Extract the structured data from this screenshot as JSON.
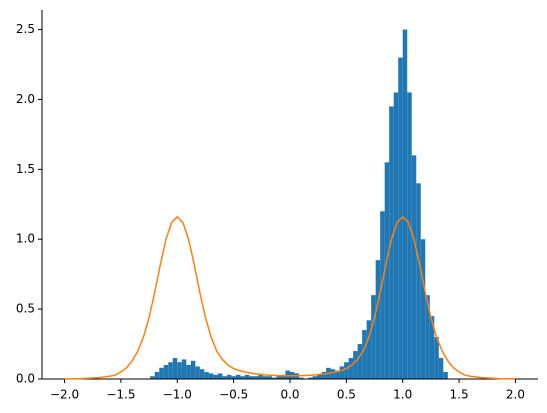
{
  "chart_data": [
    {
      "type": "histogram",
      "color": "#1f77b4",
      "bins": [
        -1.24,
        -1.2,
        -1.16,
        -1.12,
        -1.08,
        -1.04,
        -1.0,
        -0.96,
        -0.92,
        -0.88,
        -0.84,
        -0.8,
        -0.76,
        -0.72,
        -0.68,
        -0.64,
        -0.6,
        -0.56,
        -0.52,
        -0.48,
        -0.44,
        -0.4,
        -0.36,
        -0.32,
        -0.28,
        -0.24,
        -0.2,
        -0.16,
        -0.12,
        -0.08,
        -0.04,
        0.0,
        0.04,
        0.08,
        0.12,
        0.16,
        0.2,
        0.24,
        0.28,
        0.32,
        0.36,
        0.4,
        0.44,
        0.48,
        0.52,
        0.56,
        0.6,
        0.64,
        0.68,
        0.72,
        0.76,
        0.8,
        0.84,
        0.88,
        0.92,
        0.96,
        1.0,
        1.04,
        1.08,
        1.12,
        1.16,
        1.2,
        1.24,
        1.28,
        1.32,
        1.36,
        1.4
      ],
      "values": [
        0.02,
        0.05,
        0.08,
        0.1,
        0.12,
        0.15,
        0.12,
        0.14,
        0.1,
        0.13,
        0.09,
        0.07,
        0.05,
        0.04,
        0.03,
        0.04,
        0.02,
        0.03,
        0.02,
        0.03,
        0.02,
        0.03,
        0.02,
        0.02,
        0.03,
        0.02,
        0.02,
        0.01,
        0.02,
        0.03,
        0.06,
        0.05,
        0.04,
        0.01,
        0.0,
        0.01,
        0.02,
        0.03,
        0.05,
        0.08,
        0.07,
        0.06,
        0.09,
        0.12,
        0.15,
        0.2,
        0.25,
        0.35,
        0.42,
        0.6,
        0.85,
        1.2,
        1.55,
        1.95,
        2.05,
        2.3,
        2.5,
        2.05,
        1.6,
        1.4,
        1.0,
        0.6,
        0.45,
        0.3,
        0.15,
        0.05
      ],
      "xlim": [
        -2.2,
        2.2
      ],
      "ylim": [
        0,
        2.64
      ],
      "xticks": [
        {
          "value": -2.0,
          "label": "−2.0"
        },
        {
          "value": -1.5,
          "label": "−1.5"
        },
        {
          "value": -1.0,
          "label": "−1.0"
        },
        {
          "value": -0.5,
          "label": "−0.5"
        },
        {
          "value": 0.0,
          "label": "0.0"
        },
        {
          "value": 0.5,
          "label": "0.5"
        },
        {
          "value": 1.0,
          "label": "1.0"
        },
        {
          "value": 1.5,
          "label": "1.5"
        },
        {
          "value": 2.0,
          "label": "2.0"
        }
      ],
      "yticks": [
        {
          "value": 0.0,
          "label": "0.0"
        },
        {
          "value": 0.5,
          "label": "0.5"
        },
        {
          "value": 1.0,
          "label": "1.0"
        },
        {
          "value": 1.5,
          "label": "1.5"
        },
        {
          "value": 2.0,
          "label": "2.0"
        },
        {
          "value": 2.5,
          "label": "2.5"
        }
      ]
    },
    {
      "type": "line",
      "color": "#ff7f0e",
      "x": [
        -2.0,
        -1.95,
        -1.9,
        -1.85,
        -1.8,
        -1.75,
        -1.7,
        -1.65,
        -1.6,
        -1.55,
        -1.5,
        -1.45,
        -1.4,
        -1.35,
        -1.3,
        -1.25,
        -1.2,
        -1.15,
        -1.1,
        -1.05,
        -1.0,
        -0.95,
        -0.9,
        -0.85,
        -0.8,
        -0.75,
        -0.7,
        -0.65,
        -0.6,
        -0.55,
        -0.5,
        -0.45,
        -0.4,
        -0.35,
        -0.3,
        -0.25,
        -0.2,
        -0.15,
        -0.1,
        -0.05,
        0.0,
        0.05,
        0.1,
        0.15,
        0.2,
        0.25,
        0.3,
        0.35,
        0.4,
        0.45,
        0.5,
        0.55,
        0.6,
        0.65,
        0.7,
        0.75,
        0.8,
        0.85,
        0.9,
        0.95,
        1.0,
        1.05,
        1.1,
        1.15,
        1.2,
        1.25,
        1.3,
        1.35,
        1.4,
        1.45,
        1.5,
        1.55,
        1.6,
        1.65,
        1.7,
        1.75,
        1.8,
        1.85,
        1.9,
        1.95,
        2.0
      ],
      "values": [
        0.001,
        0.001,
        0.002,
        0.003,
        0.005,
        0.007,
        0.01,
        0.014,
        0.02,
        0.028,
        0.05,
        0.08,
        0.13,
        0.2,
        0.3,
        0.44,
        0.62,
        0.82,
        1.0,
        1.12,
        1.16,
        1.12,
        1.0,
        0.82,
        0.62,
        0.44,
        0.3,
        0.2,
        0.14,
        0.1,
        0.075,
        0.06,
        0.05,
        0.042,
        0.036,
        0.032,
        0.028,
        0.026,
        0.024,
        0.023,
        0.023,
        0.023,
        0.024,
        0.026,
        0.028,
        0.032,
        0.036,
        0.042,
        0.05,
        0.06,
        0.075,
        0.1,
        0.14,
        0.2,
        0.3,
        0.44,
        0.62,
        0.82,
        1.0,
        1.12,
        1.16,
        1.12,
        1.0,
        0.82,
        0.62,
        0.44,
        0.3,
        0.2,
        0.13,
        0.08,
        0.05,
        0.028,
        0.02,
        0.014,
        0.01,
        0.007,
        0.005,
        0.003,
        0.002,
        0.001,
        0.001
      ]
    }
  ]
}
